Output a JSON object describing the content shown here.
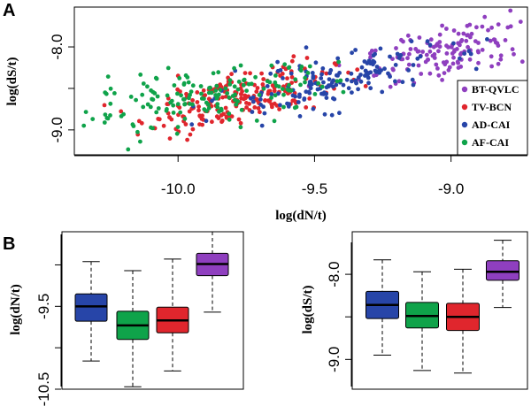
{
  "colors": {
    "BT-QVLC": "#8f3fbf",
    "TV-BCN": "#e0262d",
    "AD-CAI": "#2745a8",
    "AF-CAI": "#0fa34a"
  },
  "chart_data": [
    {
      "panel": "A",
      "type": "scatter",
      "xlabel": "log(dN/t)",
      "ylabel": "log(dS/t)",
      "xlim": [
        -10.38,
        -8.72
      ],
      "ylim": [
        -9.3,
        -7.52
      ],
      "xticks": [
        -10.0,
        -9.5,
        -9.0
      ],
      "xtick_labels": [
        "-10.0",
        "-9.5",
        "-9.0"
      ],
      "yticks": [
        -9.0,
        -8.5,
        -8.0
      ],
      "ytick_labels": [
        "-9.0",
        "",
        "-8.0"
      ],
      "legend": {
        "position": "bottom-right",
        "entries": [
          "BT-QVLC",
          "TV-BCN",
          "AD-CAI",
          "AF-CAI"
        ]
      },
      "series": [
        {
          "name": "BT-QVLC",
          "n": 150,
          "x_mean": -9.0,
          "x_sd": 0.16,
          "y_mean": -8.05,
          "y_sd": 0.2
        },
        {
          "name": "TV-BCN",
          "n": 220,
          "x_mean": -9.78,
          "x_sd": 0.18,
          "y_mean": -8.62,
          "y_sd": 0.2
        },
        {
          "name": "AD-CAI",
          "n": 160,
          "x_mean": -9.45,
          "x_sd": 0.2,
          "y_mean": -8.42,
          "y_sd": 0.2
        },
        {
          "name": "AF-CAI",
          "n": 170,
          "x_mean": -9.9,
          "x_sd": 0.24,
          "y_mean": -8.62,
          "y_sd": 0.2
        }
      ]
    },
    {
      "panel": "B-left",
      "type": "box",
      "ylabel": "log(dN/t)",
      "ylim": [
        -10.5,
        -8.6
      ],
      "yticks": [
        -10.5,
        -10.0,
        -9.5,
        -9.0
      ],
      "ytick_labels": [
        "-10.5",
        "",
        "-9.5",
        ""
      ],
      "boxes": [
        {
          "name": "AD-CAI",
          "whisker_low": -10.16,
          "q1": -9.68,
          "median": -9.5,
          "q3": -9.35,
          "whisker_high": -8.96
        },
        {
          "name": "AF-CAI",
          "whisker_low": -10.47,
          "q1": -9.9,
          "median": -9.73,
          "q3": -9.56,
          "whisker_high": -9.07
        },
        {
          "name": "TV-BCN",
          "whisker_low": -10.28,
          "q1": -9.82,
          "median": -9.67,
          "q3": -9.51,
          "whisker_high": -8.93
        },
        {
          "name": "BT-QVLC",
          "whisker_low": -9.57,
          "q1": -9.13,
          "median": -8.99,
          "q3": -8.86,
          "whisker_high": -8.6
        }
      ]
    },
    {
      "panel": "B-right",
      "type": "box",
      "ylabel": "log(dS/t)",
      "ylim": [
        -9.35,
        -7.5
      ],
      "yticks": [
        -9.0,
        -8.5,
        -8.0
      ],
      "ytick_labels": [
        "-9.0",
        "",
        "-8.0"
      ],
      "boxes": [
        {
          "name": "AD-CAI",
          "whisker_low": -8.95,
          "q1": -8.52,
          "median": -8.36,
          "q3": -8.2,
          "whisker_high": -7.83
        },
        {
          "name": "AF-CAI",
          "whisker_low": -9.13,
          "q1": -8.63,
          "median": -8.49,
          "q3": -8.33,
          "whisker_high": -7.97
        },
        {
          "name": "TV-BCN",
          "whisker_low": -9.16,
          "q1": -8.66,
          "median": -8.5,
          "q3": -8.34,
          "whisker_high": -7.94
        },
        {
          "name": "BT-QVLC",
          "whisker_low": -8.39,
          "q1": -8.07,
          "median": -7.97,
          "q3": -7.84,
          "whisker_high": -7.6
        }
      ]
    }
  ]
}
